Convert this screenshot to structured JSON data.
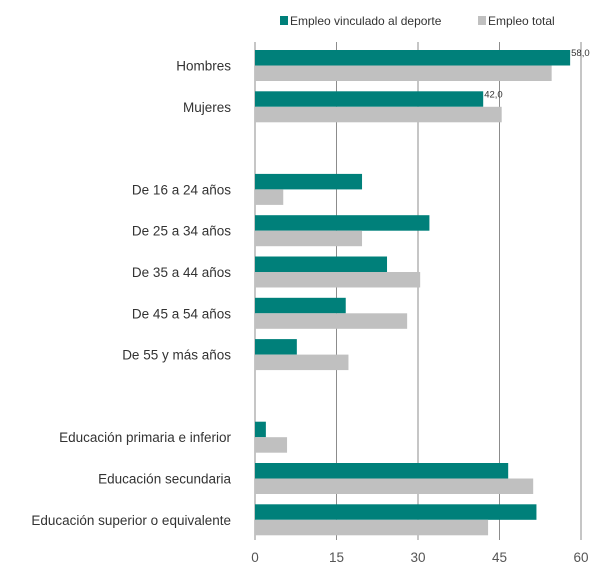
{
  "chart_data": {
    "type": "bar",
    "orientation": "horizontal",
    "categories": [
      "Hombres",
      "Mujeres",
      "De 16 a 24 años",
      "De 25 a 34 años",
      "De 35 a 44 años",
      "De 45 a 54 años",
      "De 55 y más años",
      "Educación primaria e inferior",
      "Educación secundaria",
      "Educación superior o equivalente"
    ],
    "groups": [
      [
        0,
        1
      ],
      [
        2,
        3,
        4,
        5,
        6
      ],
      [
        7,
        8,
        9
      ]
    ],
    "series": [
      {
        "name": "Empleo vinculado al deporte",
        "color": "#00807a",
        "values": [
          58.0,
          42.0,
          19.7,
          32.1,
          24.3,
          16.7,
          7.7,
          2.0,
          46.6,
          51.8
        ]
      },
      {
        "name": "Empleo total",
        "color": "#c0c0c0",
        "values": [
          54.6,
          45.4,
          5.2,
          19.7,
          30.4,
          28.0,
          17.2,
          5.9,
          51.2,
          42.9
        ]
      }
    ],
    "data_labels": [
      {
        "series": 0,
        "index": 0,
        "text": "58,0"
      },
      {
        "series": 0,
        "index": 1,
        "text": "42,0"
      }
    ],
    "xlim": [
      0,
      60
    ],
    "xticks": [
      0,
      15,
      30,
      45,
      60
    ],
    "grid": "vertical",
    "legend_position": "top-right",
    "title": "",
    "xlabel": "",
    "ylabel": ""
  }
}
